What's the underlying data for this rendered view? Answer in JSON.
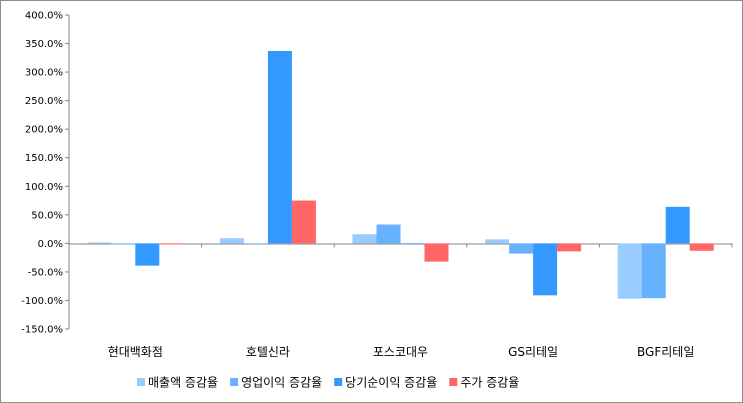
{
  "chart_data": {
    "type": "bar",
    "categories": [
      "현대백화점",
      "호텔신라",
      "포스코대우",
      "GS리테일",
      "BGF리테일"
    ],
    "series": [
      {
        "name": "매출액 증감율",
        "color": "#99CCFF",
        "values": [
          1.5,
          9,
          16,
          7,
          -97
        ]
      },
      {
        "name": "영업이익 증감율",
        "color": "#66B2FF",
        "values": [
          -2,
          0,
          33,
          -18,
          -96
        ]
      },
      {
        "name": "당기순이익 증감율",
        "color": "#3399FF",
        "values": [
          -39,
          337,
          0,
          -91,
          64
        ]
      },
      {
        "name": "주가 증감율",
        "color": "#FF6666",
        "values": [
          -2,
          75,
          -32,
          -14,
          -13
        ]
      }
    ],
    "ylim": [
      -150,
      400
    ],
    "ytick_step": 50,
    "ytick_labels": [
      "400.0%",
      "350.0%",
      "300.0%",
      "250.0%",
      "200.0%",
      "150.0%",
      "100.0%",
      "50.0%",
      "0.0%",
      "-50.0%",
      "-100.0%",
      "-150.0%"
    ],
    "grid": false,
    "legend_position": "bottom",
    "title": "",
    "xlabel": "",
    "ylabel": ""
  }
}
